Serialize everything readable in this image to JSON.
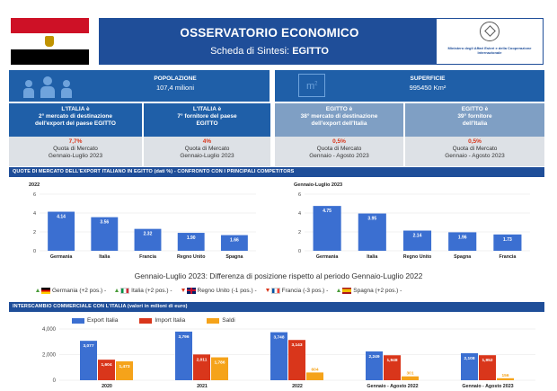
{
  "header": {
    "title": "OSSERVATORIO ECONOMICO",
    "subtitle_prefix": "Scheda di Sintesi:",
    "country": "EGITTO",
    "ministry": "Ministero degli Affari Esteri e della Cooperazione Internazionale"
  },
  "info": {
    "population_label": "POPOLAZIONE",
    "population_value": "107,4 milioni",
    "area_label": "SUPERFICIE",
    "area_value": "995450 Km²",
    "area_icon_text": "m",
    "area_icon_sup": "2"
  },
  "ranks": [
    {
      "l1": "L'ITALIA è",
      "l2": "2° mercato di destinazione",
      "l3": "dell'export del paese EGITTO",
      "pct": "7,7%",
      "q1": "Quota di Mercato",
      "q2": "Gennaio-Luglio 2023"
    },
    {
      "l1": "L'ITALIA è",
      "l2": "7° fornitore del paese",
      "l3": "EGITTO",
      "pct": "4%",
      "q1": "Quota di Mercato",
      "q2": "Gennaio-Luglio 2023"
    },
    {
      "l1": "EGITTO è",
      "l2": "38° mercato di destinazione",
      "l3": "dell'export dell'Italia",
      "pct": "0,5%",
      "q1": "Quota di Mercato",
      "q2": "Gennaio - Agosto 2023"
    },
    {
      "l1": "EGITTO è",
      "l2": "39° fornitore",
      "l3": "dell'Italia",
      "pct": "0,5%",
      "q1": "Quota di Mercato",
      "q2": "Gennaio - Agosto 2023"
    }
  ],
  "sections": {
    "quote": "QUOTE DI MERCATO DELL'EXPORT ITALIANO IN EGITTO (dati %) - CONFRONTO CON I PRINCIPALI COMPETITORS",
    "trade": "INTERSCAMBIO COMMERCIALE CON L'ITALIA (valori in milioni di euro)"
  },
  "diff": {
    "title": "Gennaio-Luglio 2023: Differenza di posizione rispetto al periodo Gennaio-Luglio 2022",
    "items": [
      "Germania (+2 pos.) -",
      "Italia (+2 pos.) -",
      "Regno Unito (-1 pos.) -",
      "Francia (-3 pos.) -",
      "Spagna (+2 pos.) -"
    ],
    "dirs": [
      "up",
      "up",
      "down",
      "down",
      "up"
    ]
  },
  "chart_data": [
    {
      "type": "bar",
      "title": "2022",
      "categories": [
        "Germania",
        "Italia",
        "Francia",
        "Regno Unito",
        "Spagna"
      ],
      "values": [
        4.14,
        3.56,
        2.32,
        1.9,
        1.66
      ],
      "labels": [
        "4.14",
        "3.56",
        "2.32",
        "1.90",
        "1.66"
      ],
      "ylim": [
        0,
        6
      ],
      "yticks": [
        "0",
        "2",
        "4",
        "6"
      ],
      "color": "#3b6fd1"
    },
    {
      "type": "bar",
      "title": "Gennaio-Luglio 2023",
      "categories": [
        "Germania",
        "Italia",
        "Regno Unito",
        "Spagna",
        "Francia"
      ],
      "values": [
        4.75,
        3.95,
        2.14,
        1.96,
        1.73
      ],
      "labels": [
        "4.75",
        "3.95",
        "2.14",
        "1.96",
        "1.73"
      ],
      "ylim": [
        0,
        6
      ],
      "yticks": [
        "0",
        "2",
        "4",
        "6"
      ],
      "color": "#3b6fd1"
    },
    {
      "type": "bar",
      "categories": [
        "2020",
        "2021",
        "2022",
        "Gennaio - Agosto 2022",
        "Gennaio - Agosto 2023"
      ],
      "series": [
        {
          "name": "Export Italia",
          "values": [
            3077,
            3796,
            3748,
            2249,
            2108
          ],
          "labels": [
            "3,077",
            "3,796",
            "3,748",
            "2,249",
            "2,108"
          ],
          "color": "#3b6fd1"
        },
        {
          "name": "Import Italia",
          "values": [
            1604,
            2011,
            3143,
            1948,
            1952
          ],
          "labels": [
            "1,604",
            "2,011",
            "3,143",
            "1,948",
            "1,952"
          ],
          "color": "#d9361b"
        },
        {
          "name": "Saldi",
          "values": [
            1473,
            1786,
            604,
            301,
            156
          ],
          "labels": [
            "1,473",
            "1,786",
            "604",
            "301",
            "156"
          ],
          "color": "#f5a31a"
        }
      ],
      "ylim": [
        0,
        4000
      ],
      "yticks": [
        "0",
        "2,000",
        "4,000"
      ]
    }
  ]
}
